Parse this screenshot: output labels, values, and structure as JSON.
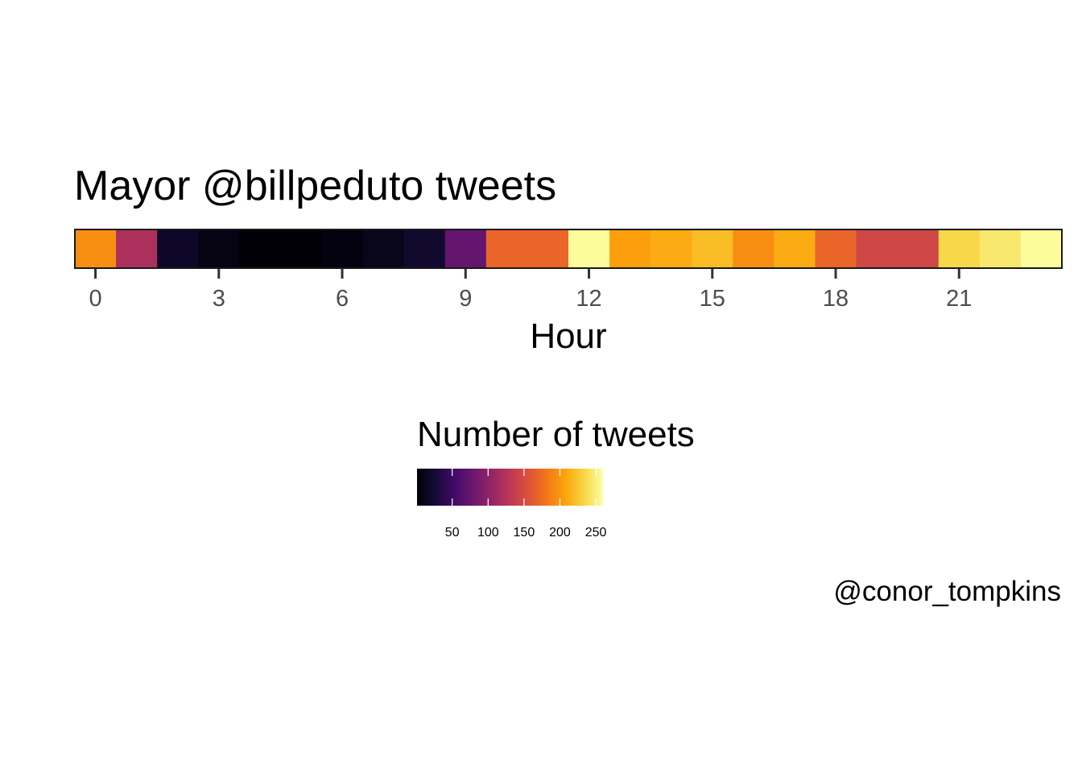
{
  "chart_data": {
    "type": "heatmap",
    "title": "Mayor @billpeduto tweets",
    "xlabel": "Hour",
    "caption": "@conor_tompkins",
    "x": [
      0,
      1,
      2,
      3,
      4,
      5,
      6,
      7,
      8,
      9,
      10,
      11,
      12,
      13,
      14,
      15,
      16,
      17,
      18,
      19,
      20,
      21,
      22,
      23
    ],
    "values": [
      195,
      120,
      18,
      8,
      2,
      2,
      6,
      12,
      22,
      75,
      170,
      170,
      258,
      205,
      212,
      220,
      195,
      212,
      170,
      145,
      145,
      235,
      245,
      258
    ],
    "xticks": [
      "0",
      "3",
      "6",
      "9",
      "12",
      "15",
      "18",
      "21"
    ],
    "xtick_values": [
      0,
      3,
      6,
      9,
      12,
      15,
      18,
      21
    ],
    "legend": {
      "title": "Number of tweets",
      "labels": [
        "50",
        "100",
        "150",
        "200",
        "250"
      ],
      "values": [
        50,
        100,
        150,
        200,
        250
      ],
      "range": [
        1,
        260
      ],
      "placement": "bottom"
    },
    "colormap": "inferno",
    "grid": false
  }
}
